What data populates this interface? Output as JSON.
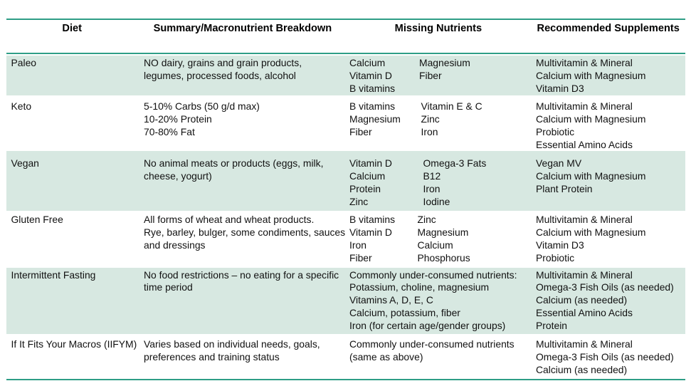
{
  "colors": {
    "accent_teal": "#2f9e86",
    "band_green": "#d7e8e1",
    "body_text": "#111111",
    "header_text": "#000000",
    "page_background": "#ffffff"
  },
  "table": {
    "headers": [
      {
        "label": "Diet"
      },
      {
        "label": "Summary/Macronutrient Breakdown"
      },
      {
        "label": "Missing Nutrients"
      },
      {
        "label": "Recommended Supplements"
      }
    ],
    "rows": [
      {
        "diet": "Paleo",
        "summary_lines": [
          "NO dairy, grains and grain products,",
          "legumes, processed foods, alcohol"
        ],
        "missing_a": [
          "Calcium",
          "Vitamin D",
          "B vitamins"
        ],
        "missing_b": [
          "Magnesium",
          "Fiber"
        ],
        "supplement_lines": [
          "Multivitamin & Mineral",
          "Calcium with Magnesium",
          "Vitamin D3"
        ]
      },
      {
        "diet": "Keto",
        "summary_lines": [
          "5-10% Carbs (50 g/d max)",
          "10-20% Protein",
          "70-80% Fat"
        ],
        "missing_a": [
          "B vitamins",
          "Magnesium",
          "Fiber"
        ],
        "missing_b": [
          "Vitamin E & C",
          "Zinc",
          "Iron"
        ],
        "supplement_lines": [
          "Multivitamin & Mineral",
          "Calcium with Magnesium",
          "Probiotic",
          "Essential Amino Acids"
        ]
      },
      {
        "diet": "Vegan",
        "summary_lines": [
          "No animal meats or products (eggs, milk,",
          "cheese, yogurt)"
        ],
        "missing_a": [
          "Vitamin D",
          "Calcium",
          "Protein",
          "Zinc"
        ],
        "missing_b": [
          "Omega-3 Fats",
          "B12",
          "Iron",
          "Iodine"
        ],
        "supplement_lines": [
          "Vegan MV",
          "Calcium with Magnesium",
          "Plant Protein"
        ]
      },
      {
        "diet": "Gluten Free",
        "summary_lines": [
          "All forms of wheat and wheat products.",
          "Rye, barley, bulger, some condiments, sauces",
          "and dressings"
        ],
        "missing_a": [
          "B vitamins",
          "Vitamin D",
          "Iron",
          "Fiber"
        ],
        "missing_b": [
          "Zinc",
          "Magnesium",
          "Calcium",
          "Phosphorus"
        ],
        "supplement_lines": [
          "Multivitamin & Mineral",
          "Calcium with Magnesium",
          "Vitamin D3",
          "Probiotic"
        ]
      },
      {
        "diet": "Intermittent Fasting",
        "summary_lines": [
          "No food restrictions – no eating for a specific",
          "time period"
        ],
        "missing_a": [
          "Commonly under-consumed nutrients:",
          "Potassium, choline, magnesium",
          "Vitamins A, D, E, C",
          "Calcium, potassium, fiber",
          "Iron (for certain age/gender groups)"
        ],
        "missing_b": [],
        "supplement_lines": [
          "Multivitamin & Mineral",
          "Omega-3 Fish Oils (as needed)",
          "Calcium (as needed)",
          "Essential Amino Acids",
          "Protein"
        ]
      },
      {
        "diet": "If It Fits Your Macros (IIFYM)",
        "summary_lines": [
          "Varies based on individual needs, goals,",
          "preferences and training status"
        ],
        "missing_a": [
          "Commonly under-consumed nutrients",
          "(same as above)"
        ],
        "missing_b": [],
        "supplement_lines": [
          "Multivitamin & Mineral",
          "Omega-3 Fish Oils (as needed)",
          "Calcium (as needed)"
        ]
      }
    ]
  }
}
